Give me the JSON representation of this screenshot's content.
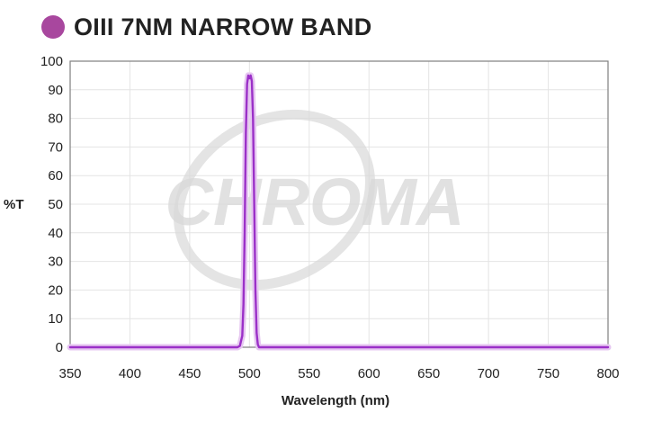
{
  "chart_data": {
    "type": "line",
    "title": "OIII 7NM NARROW BAND",
    "xlabel": "Wavelength (nm)",
    "ylabel": "%T",
    "xlim": [
      350,
      800
    ],
    "ylim": [
      0,
      100
    ],
    "xticks": [
      "350",
      "400",
      "450",
      "500",
      "550",
      "600",
      "650",
      "700",
      "750",
      "800"
    ],
    "yticks": [
      "0",
      "10",
      "20",
      "30",
      "40",
      "50",
      "60",
      "70",
      "80",
      "90",
      "100"
    ],
    "grid": true,
    "watermark": "CHROMA",
    "series": [
      {
        "color": "#9b30c8",
        "x": [
          350,
          490,
          492,
          494,
          495,
          496,
          497,
          498,
          499,
          500,
          501,
          502,
          503,
          504,
          505,
          506,
          507,
          508,
          510,
          800
        ],
        "y": [
          0,
          0,
          0.5,
          4,
          15,
          40,
          75,
          92,
          95,
          94,
          95,
          93,
          80,
          50,
          20,
          5,
          1,
          0,
          0,
          0
        ]
      }
    ]
  },
  "colors": {
    "accent": "#a8479e",
    "line": "#9b30c8",
    "grid": "#e4e4e4",
    "frame": "#7f7f7f",
    "watermark": "#d8d8d8"
  }
}
